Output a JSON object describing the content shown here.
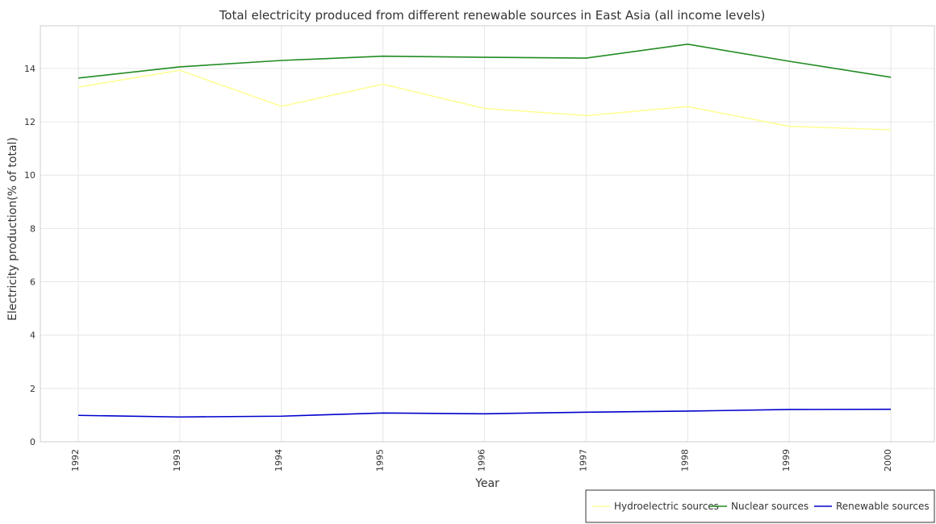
{
  "chart_data": {
    "type": "line",
    "title": "Total electricity produced from different renewable sources in East Asia (all income levels)",
    "xlabel": "Year",
    "ylabel": "Electricity production(% of total)",
    "x": [
      "1992",
      "1993",
      "1994",
      "1995",
      "1996",
      "1997",
      "1998",
      "1999",
      "2000"
    ],
    "ylim": [
      0,
      15.6
    ],
    "yticks": [
      "0",
      "2",
      "4",
      "6",
      "8",
      "10",
      "12",
      "14"
    ],
    "yticks_values": [
      0,
      2,
      4,
      6,
      8,
      10,
      12,
      14
    ],
    "grid": true,
    "legend_position": "bottom-right",
    "series": [
      {
        "name": "Hydroelectric sources",
        "color": "#ffff99",
        "values": [
          13.3,
          13.93,
          12.58,
          13.41,
          12.5,
          12.23,
          12.57,
          11.83,
          11.7
        ]
      },
      {
        "name": "Nuclear sources",
        "color": "#228b22",
        "values": [
          13.64,
          14.06,
          14.3,
          14.46,
          14.42,
          14.39,
          14.91,
          14.27,
          13.67
        ]
      },
      {
        "name": "Renewable sources",
        "color": "#0000cd",
        "values": [
          0.99,
          0.93,
          0.96,
          1.08,
          1.05,
          1.11,
          1.15,
          1.21,
          1.22
        ]
      }
    ]
  }
}
